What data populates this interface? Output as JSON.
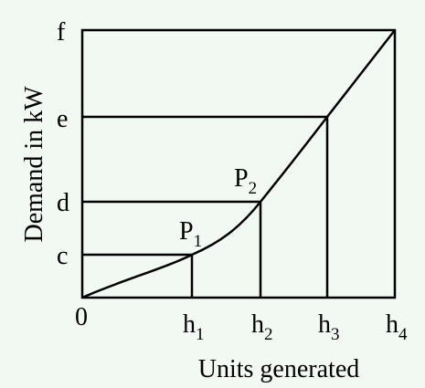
{
  "y_label": "Demand in kW",
  "x_label": "Units generated",
  "origin": "0",
  "y_ticks": [
    "c",
    "d",
    "e",
    "f"
  ],
  "x_ticks": [
    {
      "base": "h",
      "sub": "1"
    },
    {
      "base": "h",
      "sub": "2"
    },
    {
      "base": "h",
      "sub": "3"
    },
    {
      "base": "h",
      "sub": "4"
    }
  ],
  "points": [
    {
      "base": "P",
      "sub": "1"
    },
    {
      "base": "P",
      "sub": "2"
    }
  ]
}
